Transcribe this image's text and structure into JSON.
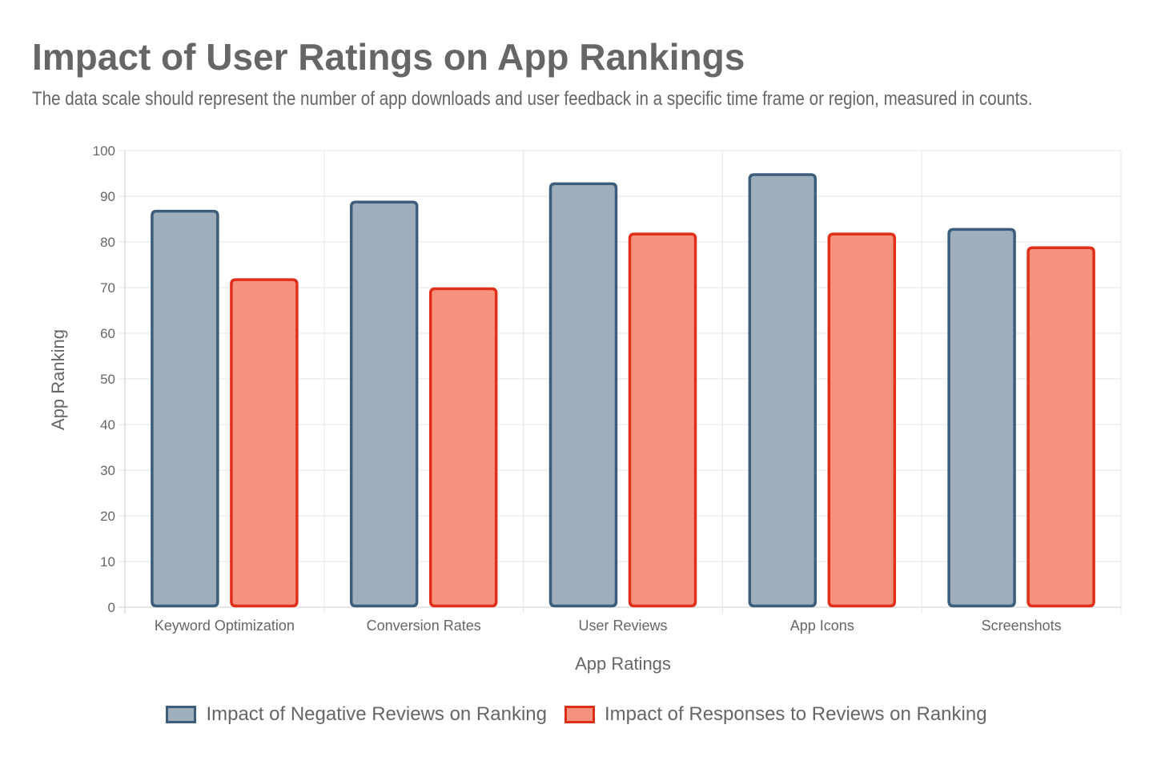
{
  "title": "Impact of User Ratings on App Rankings",
  "subtitle": "The data scale should represent the number of app downloads and user feedback in a specific time frame or region, measured in counts.",
  "chart_data": {
    "type": "bar",
    "title": "Impact of User Ratings on App Rankings",
    "xlabel": "App Ratings",
    "ylabel": "App Ranking",
    "ylim": [
      0,
      100
    ],
    "yticks": [
      0,
      10,
      20,
      30,
      40,
      50,
      60,
      70,
      80,
      90,
      100
    ],
    "grid": true,
    "legend_position": "bottom",
    "categories": [
      "Keyword Optimization",
      "Conversion Rates",
      "User Reviews",
      "App Icons",
      "Screenshots"
    ],
    "series": [
      {
        "name": "Impact of Negative Reviews on Ranking",
        "values": [
          87,
          89,
          93,
          95,
          83
        ],
        "fill": "#9eaebd",
        "stroke": "#3d5d7c"
      },
      {
        "name": "Impact of Responses to Reviews on Ranking",
        "values": [
          72,
          70,
          82,
          82,
          79
        ],
        "fill": "#f5937e",
        "stroke": "#e0301a"
      }
    ]
  }
}
